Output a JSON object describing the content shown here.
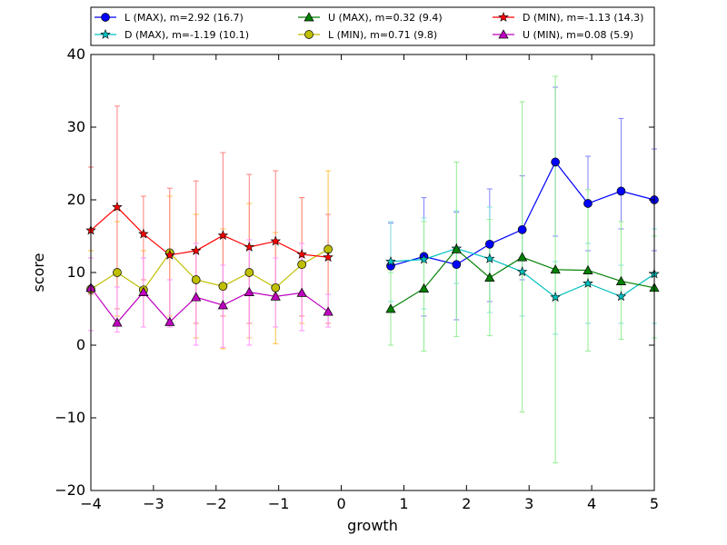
{
  "chart_data": {
    "type": "line",
    "xlabel": "growth",
    "ylabel": "score",
    "xlim": [
      -4,
      5
    ],
    "ylim": [
      -20,
      40
    ],
    "x_ticks": [
      -4,
      -3,
      -2,
      -1,
      0,
      1,
      2,
      3,
      4,
      5
    ],
    "y_ticks": [
      -20,
      -10,
      0,
      10,
      20,
      30,
      40
    ],
    "x_tick_labels": [
      "−4",
      "−3",
      "−2",
      "−1",
      "0",
      "1",
      "2",
      "3",
      "4",
      "5"
    ],
    "y_tick_labels": [
      "−20",
      "−10",
      "0",
      "10",
      "20",
      "30",
      "40"
    ],
    "grid": false,
    "legend_position": "top",
    "series": [
      {
        "name": "L (MAX), m=2.92 (16.7)",
        "color": "#0000ff",
        "err_color": "#8080ff",
        "marker": "circle",
        "x": [
          0.79,
          1.32,
          1.84,
          2.37,
          2.89,
          3.42,
          3.94,
          4.47,
          5.0
        ],
        "y": [
          10.9,
          12.2,
          11.1,
          13.9,
          15.9,
          25.2,
          19.5,
          21.2,
          20.0
        ],
        "err_low": [
          6.0,
          4.0,
          3.5,
          6.0,
          9.0,
          15.0,
          13.0,
          16.0,
          13.0
        ],
        "err_high": [
          16.8,
          20.3,
          18.3,
          21.5,
          23.3,
          35.5,
          26.0,
          31.2,
          27.0
        ]
      },
      {
        "name": "D (MAX), m=-1.19 (10.1)",
        "color": "#00bfbf",
        "err_color": "#80dfdf",
        "marker": "star",
        "x": [
          0.79,
          1.32,
          1.84,
          2.37,
          2.89,
          3.42,
          3.94,
          4.47,
          5.0
        ],
        "y": [
          11.5,
          11.8,
          13.3,
          11.9,
          10.1,
          6.6,
          8.5,
          6.7,
          9.8
        ],
        "err_low": [
          6.0,
          5.0,
          8.5,
          4.5,
          4.0,
          1.5,
          3.0,
          3.0,
          3.0
        ],
        "err_high": [
          17.0,
          17.5,
          18.5,
          19.0,
          16.0,
          11.5,
          14.0,
          11.0,
          16.0
        ]
      },
      {
        "name": "U (MAX), m=0.32 (9.4)",
        "color": "#008000",
        "err_color": "#90ee90",
        "marker": "triangle",
        "x": [
          0.79,
          1.32,
          1.84,
          2.37,
          2.89,
          3.42,
          3.94,
          4.47,
          5.0
        ],
        "y": [
          5.0,
          7.8,
          13.2,
          9.3,
          12.1,
          10.4,
          10.3,
          8.8,
          7.9
        ],
        "err_low": [
          0.0,
          -0.8,
          1.2,
          1.3,
          -9.2,
          -16.2,
          -0.8,
          0.8,
          1.0
        ],
        "err_high": [
          10.0,
          17.0,
          25.2,
          17.3,
          33.5,
          37.0,
          21.4,
          17.0,
          15.0
        ]
      },
      {
        "name": "L (MIN), m=0.71 (9.8)",
        "color": "#bfbf00",
        "err_color": "#ffc040",
        "marker": "circle",
        "x": [
          -4.0,
          -3.58,
          -3.16,
          -2.74,
          -2.32,
          -1.89,
          -1.47,
          -1.05,
          -0.63,
          -0.21
        ],
        "y": [
          7.7,
          10.0,
          7.6,
          12.7,
          9.0,
          8.1,
          10.0,
          7.9,
          11.1,
          13.2
        ],
        "err_low": [
          2.0,
          4.0,
          2.5,
          4.0,
          1.0,
          -0.5,
          1.0,
          0.2,
          3.0,
          2.5
        ],
        "err_high": [
          13.0,
          17.0,
          13.0,
          20.5,
          18.0,
          16.0,
          19.5,
          15.5,
          20.3,
          24.0
        ]
      },
      {
        "name": "D (MIN), m=-1.13 (14.3)",
        "color": "#ff0000",
        "err_color": "#ff8080",
        "marker": "star",
        "x": [
          -4.0,
          -3.58,
          -3.16,
          -2.74,
          -2.32,
          -1.89,
          -1.47,
          -1.05,
          -0.63,
          -0.21
        ],
        "y": [
          15.8,
          19.0,
          15.3,
          12.4,
          13.0,
          15.1,
          13.5,
          14.3,
          12.5,
          12.1
        ],
        "err_low": [
          7.0,
          5.0,
          9.0,
          2.5,
          3.0,
          4.0,
          3.0,
          7.0,
          4.0,
          3.0
        ],
        "err_high": [
          24.5,
          32.9,
          20.5,
          21.6,
          22.6,
          26.5,
          23.5,
          24.0,
          20.3,
          18.0
        ]
      },
      {
        "name": "U (MIN), m=0.08 (5.9)",
        "color": "#bf00bf",
        "err_color": "#ff90ff",
        "marker": "triangle",
        "x": [
          -4.0,
          -3.58,
          -3.16,
          -2.74,
          -2.32,
          -1.89,
          -1.47,
          -1.05,
          -0.63,
          -0.21
        ],
        "y": [
          7.9,
          3.1,
          7.3,
          3.2,
          6.6,
          5.5,
          7.3,
          6.7,
          7.2,
          4.6
        ],
        "err_low": [
          2.0,
          1.8,
          2.5,
          2.5,
          0.0,
          -0.3,
          0.0,
          2.5,
          2.0,
          2.5
        ],
        "err_high": [
          12.0,
          8.0,
          12.0,
          9.0,
          14.0,
          11.0,
          14.5,
          12.0,
          14.0,
          7.0
        ]
      }
    ]
  }
}
